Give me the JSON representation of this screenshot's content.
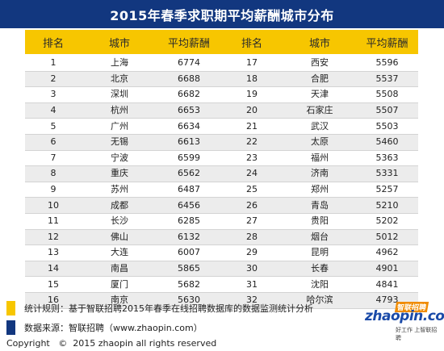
{
  "title": "2015年春季求职期平均薪酬城市分布",
  "chart_data": {
    "type": "table",
    "columns": [
      "排名",
      "城市",
      "平均薪酬",
      "排名",
      "城市",
      "平均薪酬"
    ],
    "left": [
      {
        "rank": "1",
        "city": "上海",
        "salary": "6774"
      },
      {
        "rank": "2",
        "city": "北京",
        "salary": "6688"
      },
      {
        "rank": "3",
        "city": "深圳",
        "salary": "6682"
      },
      {
        "rank": "4",
        "city": "杭州",
        "salary": "6653"
      },
      {
        "rank": "5",
        "city": "广州",
        "salary": "6634"
      },
      {
        "rank": "6",
        "city": "无锡",
        "salary": "6613"
      },
      {
        "rank": "7",
        "city": "宁波",
        "salary": "6599"
      },
      {
        "rank": "8",
        "city": "重庆",
        "salary": "6562"
      },
      {
        "rank": "9",
        "city": "苏州",
        "salary": "6487"
      },
      {
        "rank": "10",
        "city": "成都",
        "salary": "6456"
      },
      {
        "rank": "11",
        "city": "长沙",
        "salary": "6285"
      },
      {
        "rank": "12",
        "city": "佛山",
        "salary": "6132"
      },
      {
        "rank": "13",
        "city": "大连",
        "salary": "6007"
      },
      {
        "rank": "14",
        "city": "南昌",
        "salary": "5865"
      },
      {
        "rank": "15",
        "city": "厦门",
        "salary": "5682"
      },
      {
        "rank": "16",
        "city": "南京",
        "salary": "5630"
      }
    ],
    "right": [
      {
        "rank": "17",
        "city": "西安",
        "salary": "5596"
      },
      {
        "rank": "18",
        "city": "合肥",
        "salary": "5537"
      },
      {
        "rank": "19",
        "city": "天津",
        "salary": "5508"
      },
      {
        "rank": "20",
        "city": "石家庄",
        "salary": "5507"
      },
      {
        "rank": "21",
        "city": "武汉",
        "salary": "5503"
      },
      {
        "rank": "22",
        "city": "太原",
        "salary": "5460"
      },
      {
        "rank": "23",
        "city": "福州",
        "salary": "5363"
      },
      {
        "rank": "24",
        "city": "济南",
        "salary": "5331"
      },
      {
        "rank": "25",
        "city": "郑州",
        "salary": "5257"
      },
      {
        "rank": "26",
        "city": "青岛",
        "salary": "5210"
      },
      {
        "rank": "27",
        "city": "贵阳",
        "salary": "5202"
      },
      {
        "rank": "28",
        "city": "烟台",
        "salary": "5012"
      },
      {
        "rank": "29",
        "city": "昆明",
        "salary": "4962"
      },
      {
        "rank": "30",
        "city": "长春",
        "salary": "4901"
      },
      {
        "rank": "31",
        "city": "沈阳",
        "salary": "4841"
      },
      {
        "rank": "32",
        "city": "哈尔滨",
        "salary": "4793"
      }
    ]
  },
  "notes": {
    "rule": "统计规则：基于智联招聘2015年春季在线招聘数据库的数据监测统计分析",
    "source": "数据来源：智联招聘（www.zhaopin.com）"
  },
  "copyright": "Copyright   ©  2015 zhaopin all rights reserved",
  "logo": {
    "main": "zhaopin.com",
    "cn": "智联招聘",
    "slogan": "好工作  上智联招聘"
  },
  "colors": {
    "title_bg": "#12377f",
    "header_bg": "#f7c600",
    "row_alt": "#ececec",
    "logo_blue": "#1a4aa8",
    "logo_orange": "#f08c00"
  }
}
